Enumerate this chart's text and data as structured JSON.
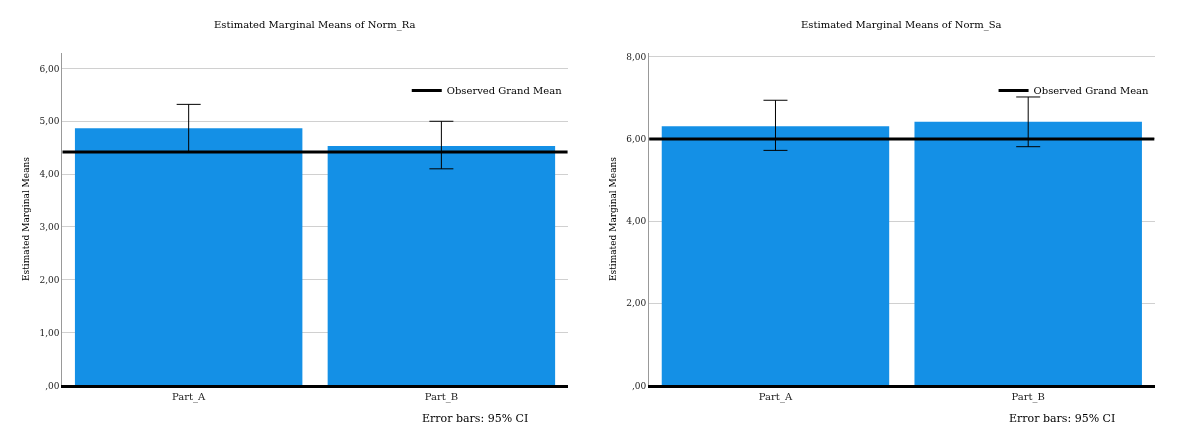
{
  "chart_data": [
    {
      "type": "bar",
      "title": "Estimated Marginal Means of Norm_Ra",
      "ylabel": "Estimated Marginal Means",
      "categories": [
        "Part_A",
        "Part_B"
      ],
      "values": [
        4.87,
        4.53
      ],
      "color": "#1490e6",
      "errors": [
        [
          4.42,
          5.32
        ],
        [
          4.1,
          5.0
        ]
      ],
      "ylim": [
        0,
        6.3
      ],
      "yticks": [
        {
          "value": 0,
          "label": ",00"
        },
        {
          "value": 1,
          "label": "1,00"
        },
        {
          "value": 2,
          "label": "2,00"
        },
        {
          "value": 3,
          "label": "3,00"
        },
        {
          "value": 4,
          "label": "4,00"
        },
        {
          "value": 5,
          "label": "5,00"
        },
        {
          "value": 6,
          "label": "6,00"
        }
      ],
      "ref_lines": [
        {
          "axis": "y",
          "value": 4.42,
          "label": "Observed Grand Mean",
          "color": "#000000"
        }
      ],
      "grid": "y",
      "legend": "top right",
      "annotations": [
        "Error bars: 95% CI"
      ]
    },
    {
      "type": "bar",
      "title": "Estimated Marginal Means of Norm_Sa",
      "ylabel": "Estimated Marginal Means",
      "categories": [
        "Part_A",
        "Part_B"
      ],
      "values": [
        6.31,
        6.42
      ],
      "color": "#1490e6",
      "errors": [
        [
          5.72,
          6.94
        ],
        [
          5.81,
          7.02
        ]
      ],
      "ylim": [
        0,
        8.1
      ],
      "yticks": [
        {
          "value": 0,
          "label": ",00"
        },
        {
          "value": 2,
          "label": "2,00"
        },
        {
          "value": 4,
          "label": "4,00"
        },
        {
          "value": 6,
          "label": "6,00"
        },
        {
          "value": 8,
          "label": "8,00"
        }
      ],
      "ref_lines": [
        {
          "axis": "y",
          "value": 6.0,
          "label": "Observed Grand Mean",
          "color": "#000000"
        }
      ],
      "grid": "y",
      "legend": "top right",
      "annotations": [
        "Error bars: 95% CI"
      ]
    }
  ]
}
